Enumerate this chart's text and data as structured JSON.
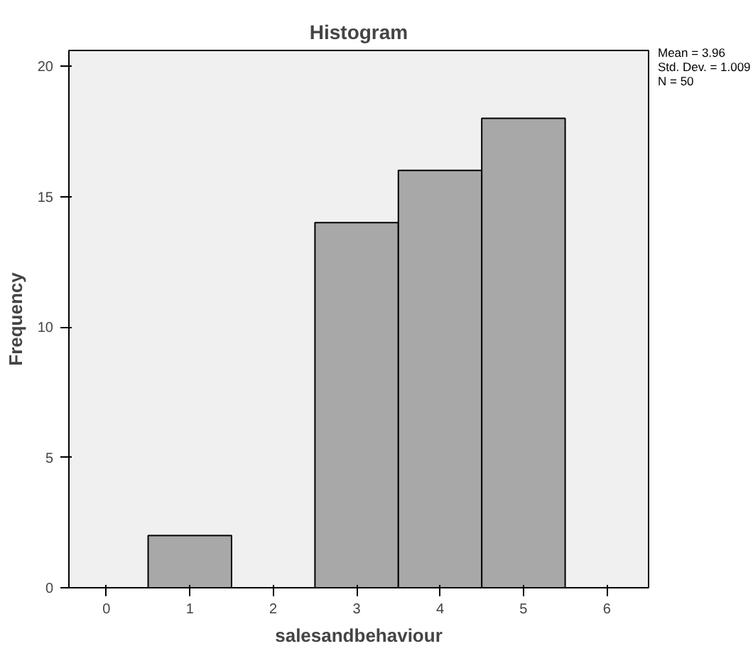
{
  "chart_data": {
    "type": "histogram",
    "title": "Histogram",
    "xlabel": "salesandbehaviour",
    "ylabel": "Frequency",
    "bins": [
      0.5,
      1.5,
      2.5,
      3.5,
      4.5,
      5.5
    ],
    "values": [
      2,
      0,
      14,
      16,
      18
    ],
    "color": "#a8a8a8",
    "xlim": [
      -0.45,
      6.5
    ],
    "xticks": [
      0,
      1,
      2,
      3,
      4,
      5,
      6
    ],
    "ylim": [
      0,
      20.6
    ],
    "yticks": [
      0,
      5,
      10,
      15,
      20
    ],
    "grid": false,
    "annotations": [
      "Mean = 3.96",
      "Std. Dev. = 1.009",
      "N = 50"
    ]
  }
}
